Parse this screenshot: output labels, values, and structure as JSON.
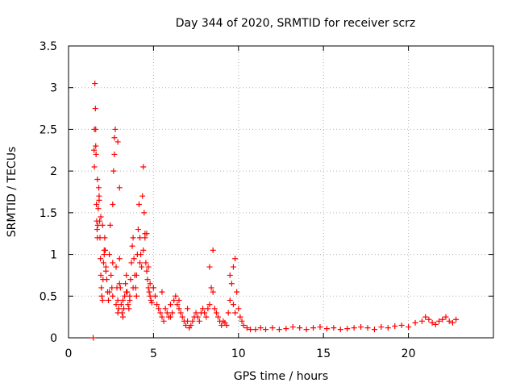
{
  "chart_data": {
    "type": "scatter",
    "title": "Day 344 of 2020, SRMTID for receiver scrz",
    "xlabel": "GPS time / hours",
    "ylabel": "SRMTID / TECUs",
    "xlim": [
      0,
      25
    ],
    "ylim": [
      0,
      3.5
    ],
    "xticks": [
      0,
      5,
      10,
      15,
      20
    ],
    "yticks": [
      0,
      0.5,
      1,
      1.5,
      2,
      2.5,
      3,
      3.5
    ],
    "xtick_labels": [
      "0",
      "5",
      "10",
      "15",
      "20"
    ],
    "ytick_labels": [
      "0",
      "0.5",
      "1",
      "1.5",
      "2",
      "2.5",
      "3",
      "3.5"
    ],
    "grid": true,
    "marker": "+",
    "color": "#ff0000",
    "series": [
      {
        "name": "SRMTID",
        "x": [
          1.45,
          1.5,
          1.52,
          1.55,
          1.58,
          1.6,
          1.62,
          1.64,
          1.66,
          1.68,
          1.7,
          1.72,
          1.75,
          1.78,
          1.8,
          1.83,
          1.85,
          1.88,
          1.9,
          1.93,
          1.96,
          2.0,
          2.03,
          2.06,
          2.1,
          2.13,
          2.16,
          2.2,
          2.25,
          2.3,
          2.35,
          2.4,
          2.45,
          2.5,
          2.55,
          2.6,
          2.65,
          2.7,
          2.75,
          2.8,
          2.85,
          2.9,
          2.95,
          3.0,
          3.05,
          3.1,
          3.15,
          3.2,
          3.25,
          3.3,
          3.35,
          3.4,
          3.45,
          3.5,
          3.55,
          3.6,
          3.65,
          3.7,
          3.75,
          3.8,
          3.85,
          3.9,
          3.95,
          4.0,
          4.05,
          4.1,
          4.15,
          4.2,
          4.25,
          4.3,
          4.35,
          4.4,
          4.45,
          4.5,
          4.55,
          4.6,
          4.65,
          4.7,
          4.75,
          4.8,
          4.85,
          4.9,
          5.0,
          5.1,
          5.2,
          5.3,
          5.4,
          5.5,
          5.6,
          5.7,
          5.8,
          5.9,
          6.0,
          6.1,
          6.2,
          6.3,
          6.4,
          6.5,
          6.6,
          6.7,
          6.8,
          6.9,
          7.0,
          7.1,
          7.2,
          7.3,
          7.4,
          7.5,
          7.6,
          7.7,
          7.8,
          7.9,
          8.0,
          8.1,
          8.2,
          8.3,
          8.4,
          8.5,
          8.6,
          8.7,
          8.8,
          8.9,
          9.0,
          9.1,
          9.2,
          9.3,
          9.4,
          9.5,
          9.6,
          9.7,
          9.8,
          9.9,
          10.0,
          10.1,
          10.2,
          10.3,
          10.5,
          10.7,
          11.0,
          11.3,
          11.6,
          12.0,
          12.4,
          12.8,
          13.2,
          13.6,
          14.0,
          14.4,
          14.8,
          15.2,
          15.6,
          16.0,
          16.4,
          16.8,
          17.2,
          17.6,
          18.0,
          18.4,
          18.8,
          19.2,
          19.6,
          20.0,
          20.4,
          20.8,
          21.0,
          21.2,
          21.4,
          21.6,
          21.8,
          22.0,
          22.2,
          22.4,
          22.6,
          22.8,
          1.52,
          1.6,
          1.7,
          1.8,
          1.9,
          2.0,
          2.1,
          2.2,
          2.4,
          2.6,
          2.8,
          2.9,
          3.0,
          3.2,
          3.4,
          3.6,
          3.8,
          4.0,
          4.2,
          4.4,
          4.5,
          4.6,
          4.7,
          4.8,
          5.0,
          5.5,
          6.0,
          6.5,
          7.0,
          8.3,
          8.5,
          9.5,
          9.7,
          9.8,
          2.6,
          2.7,
          2.9,
          3.0
        ],
        "y": [
          0.0,
          2.25,
          2.05,
          3.05,
          2.75,
          2.5,
          2.2,
          1.6,
          1.4,
          1.3,
          1.2,
          1.35,
          1.55,
          1.8,
          1.65,
          1.4,
          1.2,
          0.95,
          0.75,
          0.6,
          0.5,
          0.45,
          0.7,
          0.9,
          1.05,
          1.2,
          1.05,
          0.85,
          0.7,
          0.55,
          0.45,
          1.0,
          1.35,
          0.75,
          0.6,
          0.9,
          2.0,
          2.4,
          2.5,
          0.85,
          0.6,
          0.45,
          0.35,
          0.95,
          0.6,
          0.4,
          0.3,
          0.25,
          0.35,
          0.5,
          0.65,
          0.75,
          0.55,
          0.4,
          0.35,
          0.5,
          0.7,
          0.9,
          1.1,
          1.2,
          0.95,
          0.75,
          0.6,
          0.5,
          1.0,
          1.3,
          1.6,
          1.2,
          1.0,
          0.85,
          1.7,
          2.05,
          1.5,
          1.25,
          0.9,
          0.8,
          0.7,
          0.6,
          0.55,
          0.5,
          0.45,
          0.42,
          0.6,
          0.5,
          0.4,
          0.35,
          0.3,
          0.25,
          0.2,
          0.35,
          0.3,
          0.25,
          0.25,
          0.3,
          0.45,
          0.5,
          0.4,
          0.35,
          0.3,
          0.25,
          0.2,
          0.15,
          0.2,
          0.12,
          0.15,
          0.2,
          0.25,
          0.3,
          0.25,
          0.2,
          0.3,
          0.35,
          0.3,
          0.25,
          0.35,
          0.4,
          0.6,
          1.05,
          0.35,
          0.3,
          0.25,
          0.2,
          0.15,
          0.2,
          0.18,
          0.15,
          0.3,
          0.45,
          0.65,
          0.85,
          0.95,
          0.55,
          0.35,
          0.25,
          0.2,
          0.15,
          0.12,
          0.1,
          0.1,
          0.12,
          0.1,
          0.12,
          0.1,
          0.11,
          0.13,
          0.12,
          0.1,
          0.12,
          0.13,
          0.11,
          0.12,
          0.1,
          0.11,
          0.12,
          0.13,
          0.12,
          0.1,
          0.13,
          0.12,
          0.14,
          0.15,
          0.13,
          0.18,
          0.2,
          0.25,
          0.22,
          0.18,
          0.16,
          0.2,
          0.22,
          0.25,
          0.2,
          0.18,
          0.22,
          2.5,
          2.3,
          1.9,
          1.7,
          1.45,
          1.35,
          1.0,
          0.8,
          0.55,
          0.5,
          0.4,
          0.3,
          0.65,
          0.45,
          0.55,
          0.45,
          0.6,
          0.75,
          0.9,
          1.05,
          1.2,
          1.25,
          0.85,
          0.65,
          0.6,
          0.55,
          0.4,
          0.45,
          0.35,
          0.85,
          0.55,
          0.75,
          0.4,
          0.3,
          1.6,
          2.2,
          2.35,
          1.8
        ]
      }
    ]
  }
}
